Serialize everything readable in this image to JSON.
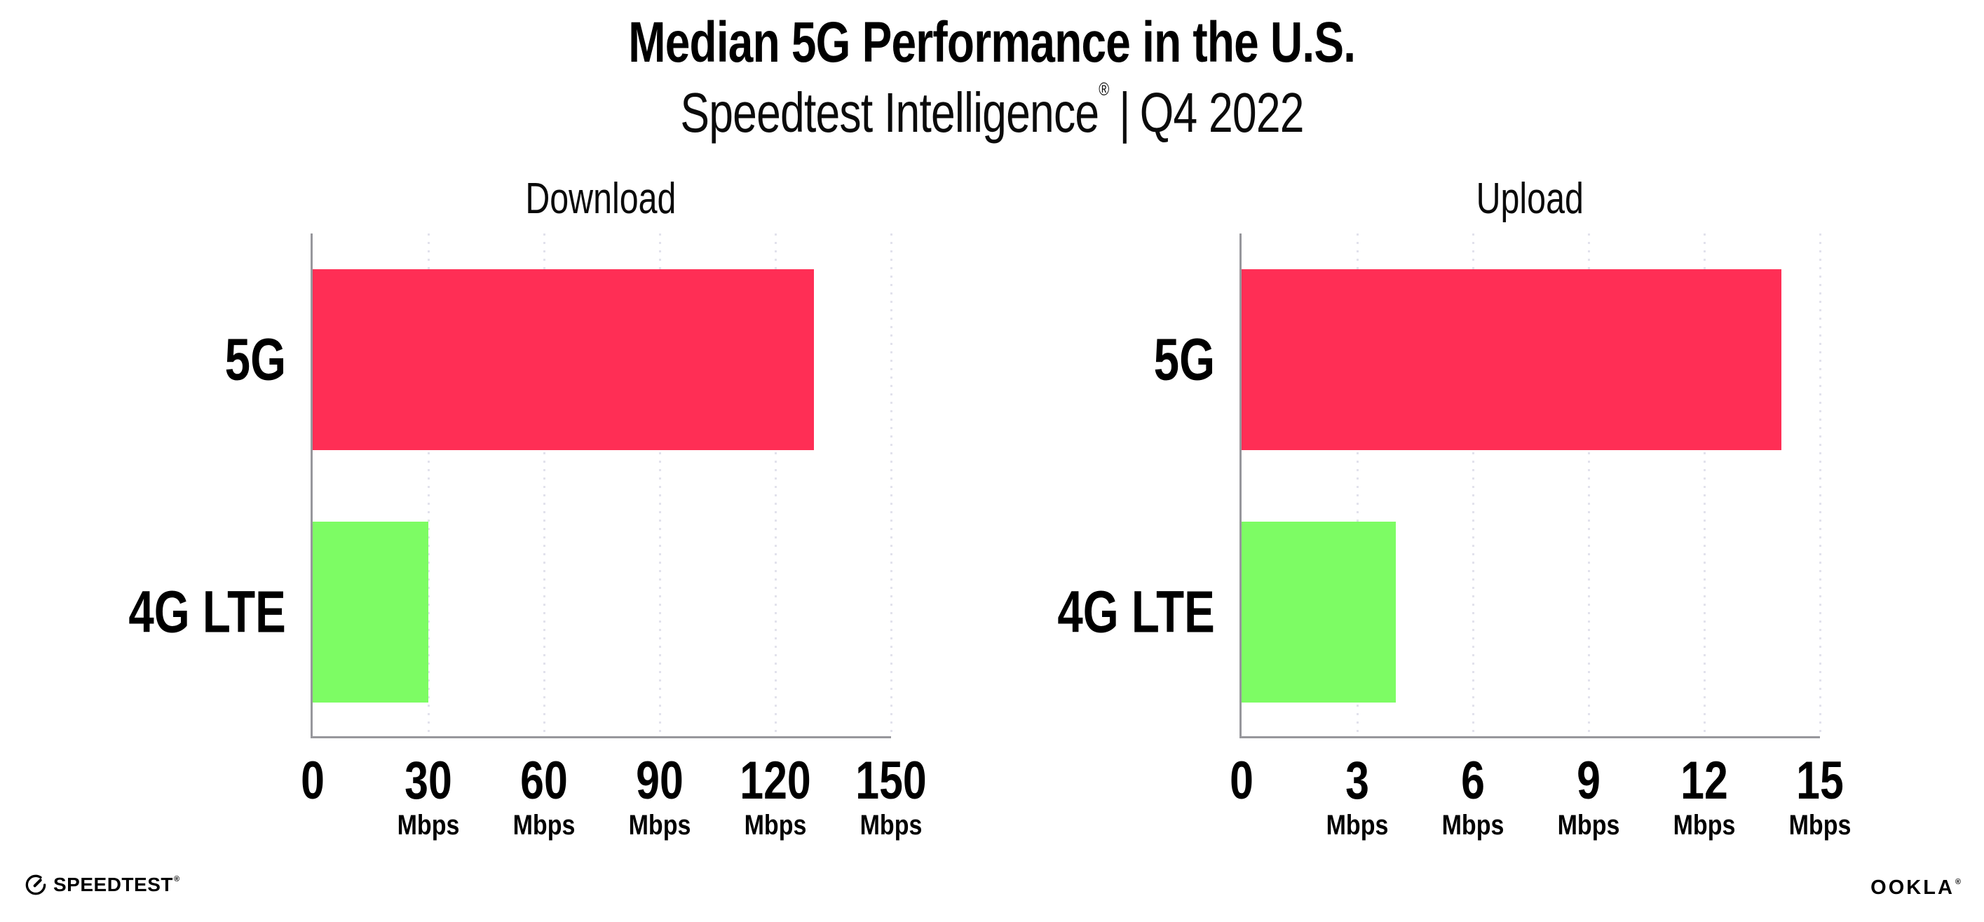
{
  "header": {
    "title": "Median 5G Performance in the U.S.",
    "subtitle_brand": "Speedtest Intelligence",
    "subtitle_reg": "®",
    "subtitle_separator": "|",
    "subtitle_period": "Q4 2022"
  },
  "chart_data": [
    {
      "type": "bar",
      "orientation": "horizontal",
      "title": "Download",
      "categories": [
        "5G",
        "4G LTE"
      ],
      "values": [
        130,
        30
      ],
      "value_unit": "Mbps",
      "xlim": [
        0,
        150
      ],
      "ticks": [
        0,
        30,
        60,
        90,
        120,
        150
      ],
      "tick_unit_label": "Mbps",
      "bar_colors": [
        "#ff2e55",
        "#7dfc64"
      ],
      "grid": "dotted-vertical-at-ticks",
      "legend": "none"
    },
    {
      "type": "bar",
      "orientation": "horizontal",
      "title": "Upload",
      "categories": [
        "5G",
        "4G LTE"
      ],
      "values": [
        14,
        4
      ],
      "value_unit": "Mbps",
      "xlim": [
        0,
        15
      ],
      "ticks": [
        0,
        3,
        6,
        9,
        12,
        15
      ],
      "tick_unit_label": "Mbps",
      "bar_colors": [
        "#ff2e55",
        "#7dfc64"
      ],
      "grid": "dotted-vertical-at-ticks",
      "legend": "none"
    }
  ],
  "footer": {
    "speedtest_logo_text": "SPEEDTEST",
    "speedtest_reg": "®",
    "ookla_logo_text": "OOKLA",
    "ookla_reg": "®"
  },
  "colors": {
    "bar_5g": "#ff2e55",
    "bar_4g_lte": "#7dfc64",
    "axis_line": "#97979c",
    "gridline": "#e2e2ec",
    "text": "#000000",
    "background": "#ffffff"
  }
}
